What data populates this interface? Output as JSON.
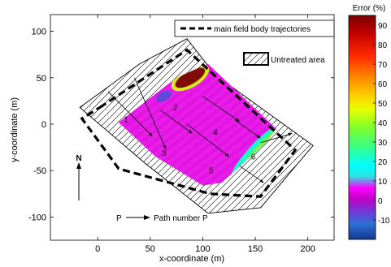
{
  "chart_data": {
    "type": "heatmap",
    "xlabel": "x-coordinate (m)",
    "ylabel": "y-coordinate (m)",
    "xlim": [
      -45,
      225
    ],
    "ylim": [
      -125,
      118
    ],
    "x_ticks": [
      0,
      50,
      100,
      150,
      200
    ],
    "y_ticks": [
      -100,
      -50,
      0,
      50,
      100
    ],
    "colorbar": {
      "title": "Error (%)",
      "range": [
        -20,
        95
      ],
      "ticks": [
        -10,
        0,
        10,
        20,
        30,
        40,
        50,
        60,
        70,
        80,
        90
      ]
    },
    "legend": {
      "dashed_line_label": "main field body trajectories",
      "hatch_label": "Untreated area"
    },
    "path_key": {
      "arrow_label": "Path number P",
      "arrow_prefix": "P"
    },
    "north_label": "N",
    "field_outline": [
      [
        -17,
        18
      ],
      [
        40,
        65
      ],
      [
        85,
        92
      ],
      [
        112,
        53
      ],
      [
        205,
        -23
      ],
      [
        155,
        -90
      ],
      [
        105,
        -96
      ],
      [
        45,
        -42
      ]
    ],
    "trajectories": [
      [
        2,
        18
      ],
      [
        85,
        80
      ],
      [
        188,
        -28
      ],
      [
        155,
        -78
      ],
      [
        107,
        -75
      ],
      [
        20,
        -48
      ],
      [
        -15,
        6
      ]
    ],
    "treated_area": [
      [
        20,
        2
      ],
      [
        75,
        50
      ],
      [
        105,
        65
      ],
      [
        170,
        -5
      ],
      [
        160,
        -20
      ],
      [
        118,
        -63
      ],
      [
        100,
        -66
      ],
      [
        55,
        -35
      ]
    ],
    "error_zones": [
      {
        "x": 88,
        "y": 50,
        "value": 95,
        "rx": 16,
        "ry": 7,
        "rotate_deg": -30
      },
      {
        "x": 63,
        "y": 30,
        "value": -8,
        "rx": 8,
        "ry": 5,
        "rotate_deg": -30
      },
      {
        "x": 148,
        "y": -30,
        "value": 22,
        "rx": 30,
        "ry": 6,
        "rotate_deg": -48
      },
      {
        "x": 152,
        "y": -28,
        "value": 35,
        "rx": 26,
        "ry": 3,
        "rotate_deg": -48
      }
    ],
    "path_labels": [
      {
        "x": 27,
        "y": 2,
        "label": "1"
      },
      {
        "x": 74,
        "y": 15,
        "label": "2"
      },
      {
        "x": 63,
        "y": -34,
        "label": "3"
      },
      {
        "x": 112,
        "y": -12,
        "label": "4"
      },
      {
        "x": 108,
        "y": -53,
        "label": "5"
      },
      {
        "x": 148,
        "y": -38,
        "label": "6"
      }
    ]
  }
}
